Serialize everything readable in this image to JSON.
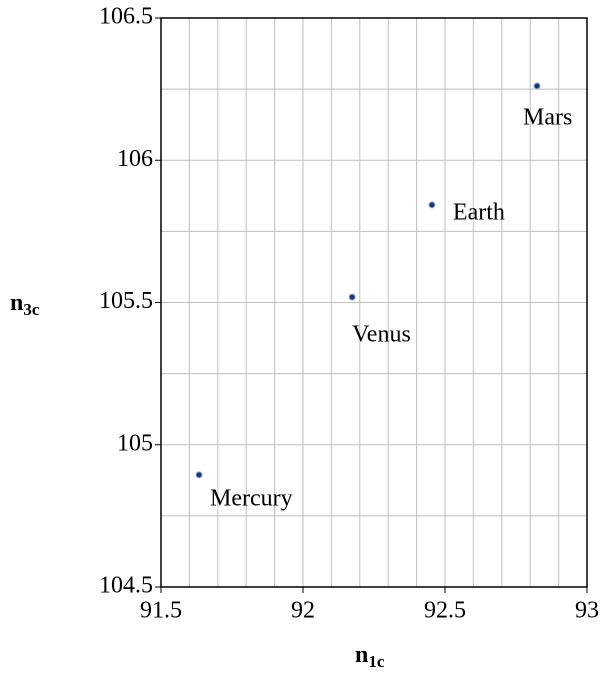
{
  "chart_data": {
    "type": "scatter",
    "x_label": {
      "main": "n",
      "sub": "1c"
    },
    "y_label": {
      "main": "n",
      "sub": "3c"
    },
    "series": [
      {
        "name": null,
        "color": "#1f3864",
        "labels": [
          "Mercury",
          "Venus",
          "Earth",
          "Mars"
        ],
        "x": [
          91.634,
          92.173,
          92.454,
          92.824
        ],
        "values": [
          104.894,
          105.519,
          105.843,
          106.261
        ]
      }
    ],
    "xlim": [
      91.5,
      93
    ],
    "xticks": [
      91.5,
      92,
      92.5,
      93
    ],
    "ylim": [
      104.5,
      106.5
    ],
    "yticks": [
      104.5,
      105,
      105.5,
      106,
      106.5
    ],
    "x_minor_grid": [
      91.6,
      91.7,
      91.8,
      91.9,
      92.1,
      92.2,
      92.3,
      92.4,
      92.6,
      92.7,
      92.8,
      92.9
    ],
    "y_minor_grid": [
      104.75,
      105.25,
      105.75,
      106.25
    ],
    "grid": true
  }
}
